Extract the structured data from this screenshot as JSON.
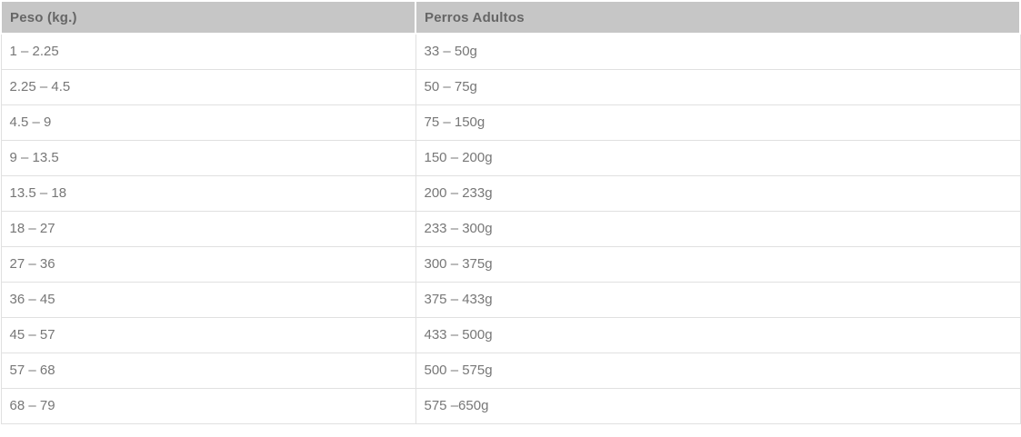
{
  "colors": {
    "header_bg": "#c6c6c6",
    "header_text": "#666666",
    "body_text": "#777777",
    "row_border": "#e0e0e0",
    "cell_bg": "#ffffff"
  },
  "table": {
    "columns": [
      {
        "label": "Peso (kg.)"
      },
      {
        "label": "Perros Adultos"
      }
    ],
    "rows": [
      {
        "weight": "1 – 2.25",
        "amount": "33 – 50g"
      },
      {
        "weight": "2.25 – 4.5",
        "amount": "50 – 75g"
      },
      {
        "weight": "4.5 – 9",
        "amount": "75 – 150g"
      },
      {
        "weight": "9 – 13.5",
        "amount": "150 – 200g"
      },
      {
        "weight": "13.5 – 18",
        "amount": "200 – 233g"
      },
      {
        "weight": "18 – 27",
        "amount": "233 – 300g"
      },
      {
        "weight": "27 – 36",
        "amount": "300 – 375g"
      },
      {
        "weight": "36 – 45",
        "amount": "375 – 433g"
      },
      {
        "weight": "45 – 57",
        "amount": "433 – 500g"
      },
      {
        "weight": "57 – 68",
        "amount": "500 – 575g"
      },
      {
        "weight": "68 – 79",
        "amount": "575 –650g"
      }
    ]
  }
}
